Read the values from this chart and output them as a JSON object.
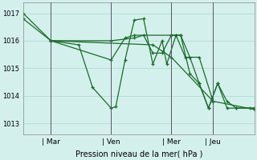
{
  "background_color": "#d4f0ec",
  "grid_color": "#b8ddd8",
  "line_color": "#1a6b2a",
  "xlabel": "Pression niveau de la mer( hPa )",
  "yticks": [
    1013,
    1014,
    1015,
    1016,
    1017
  ],
  "xtick_labels": [
    "Mar",
    "Ven",
    "Mer",
    "Jeu"
  ],
  "xtick_positions": [
    0.12,
    0.38,
    0.64,
    0.82
  ],
  "xlim": [
    0,
    1.0
  ],
  "ylim": [
    1012.6,
    1017.4
  ],
  "vlines_x": [
    0.12,
    0.38,
    0.64,
    0.82
  ],
  "series": [
    {
      "points": [
        [
          0.0,
          1017.0
        ],
        [
          0.12,
          1016.0
        ],
        [
          0.24,
          1015.85
        ],
        [
          0.3,
          1014.3
        ],
        [
          0.38,
          1013.55
        ],
        [
          0.4,
          1013.6
        ],
        [
          0.44,
          1015.3
        ],
        [
          0.48,
          1016.75
        ],
        [
          0.52,
          1016.8
        ],
        [
          0.56,
          1015.15
        ],
        [
          0.6,
          1016.0
        ],
        [
          0.62,
          1015.15
        ],
        [
          0.66,
          1016.2
        ],
        [
          0.68,
          1016.2
        ],
        [
          0.72,
          1014.8
        ],
        [
          0.76,
          1014.45
        ],
        [
          0.8,
          1013.55
        ],
        [
          0.84,
          1014.45
        ],
        [
          0.88,
          1013.8
        ],
        [
          0.92,
          1013.55
        ],
        [
          0.98,
          1013.55
        ],
        [
          1.0,
          1013.55
        ]
      ]
    },
    {
      "points": [
        [
          0.0,
          1016.8
        ],
        [
          0.12,
          1016.0
        ],
        [
          0.56,
          1015.85
        ],
        [
          0.64,
          1015.4
        ],
        [
          0.82,
          1013.8
        ],
        [
          1.0,
          1013.5
        ]
      ]
    },
    {
      "points": [
        [
          0.12,
          1016.0
        ],
        [
          0.38,
          1016.0
        ],
        [
          0.48,
          1016.1
        ],
        [
          0.52,
          1016.2
        ],
        [
          0.56,
          1015.55
        ],
        [
          0.6,
          1015.55
        ],
        [
          0.64,
          1016.2
        ],
        [
          0.66,
          1016.2
        ],
        [
          0.7,
          1015.4
        ],
        [
          0.76,
          1015.4
        ],
        [
          0.82,
          1013.8
        ]
      ]
    },
    {
      "points": [
        [
          0.12,
          1016.0
        ],
        [
          0.38,
          1015.3
        ],
        [
          0.44,
          1016.1
        ],
        [
          0.48,
          1016.2
        ],
        [
          0.64,
          1016.2
        ],
        [
          0.68,
          1016.2
        ],
        [
          0.72,
          1015.4
        ],
        [
          0.76,
          1014.45
        ],
        [
          0.8,
          1013.55
        ],
        [
          0.84,
          1014.45
        ],
        [
          0.88,
          1013.55
        ],
        [
          0.92,
          1013.55
        ],
        [
          1.0,
          1013.55
        ]
      ]
    }
  ]
}
